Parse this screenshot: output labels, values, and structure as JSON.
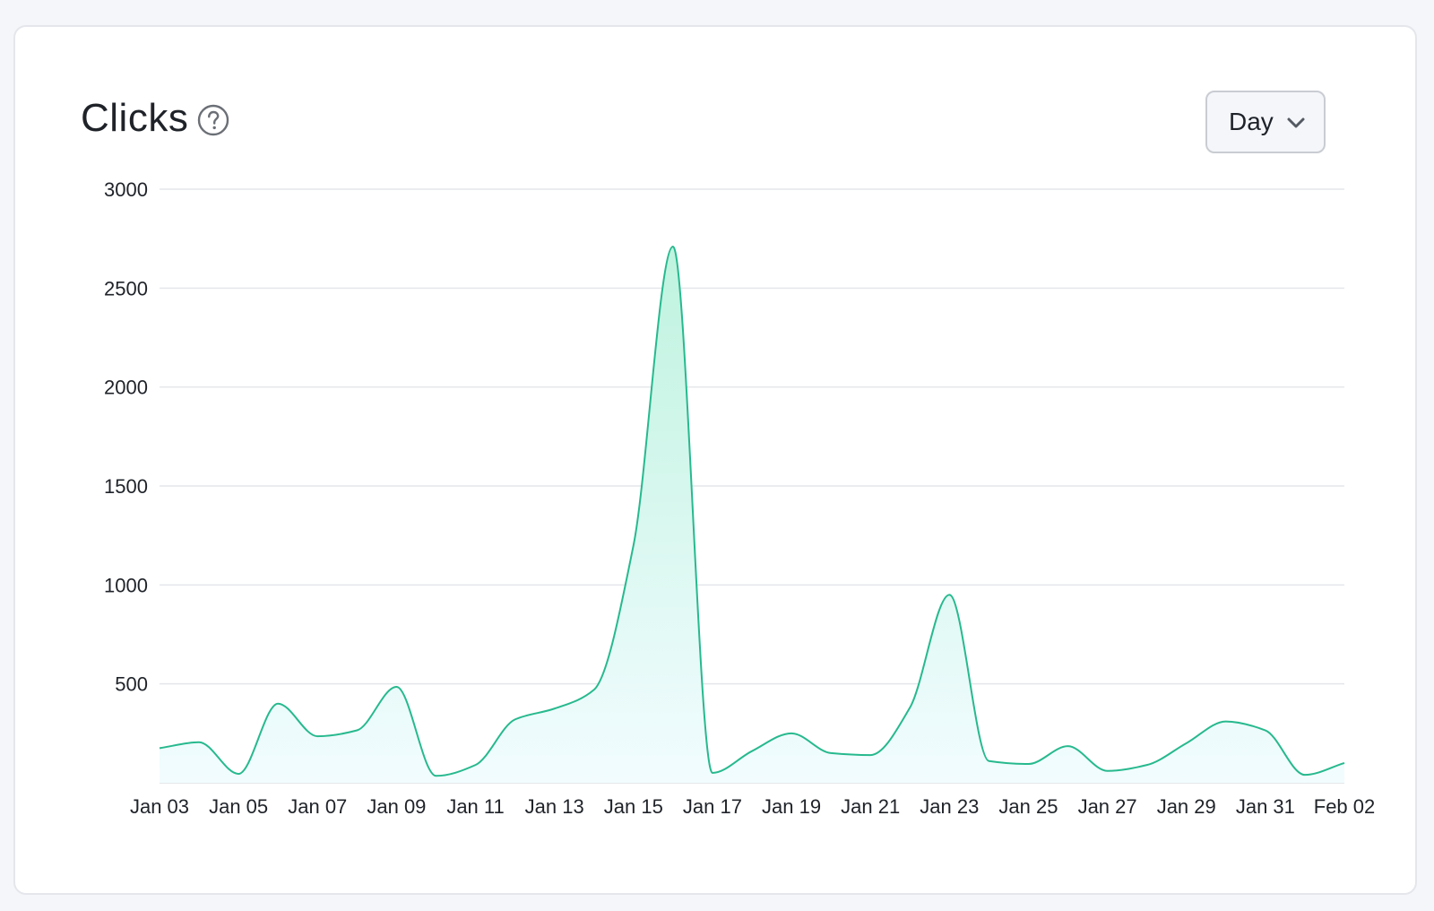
{
  "header": {
    "title": "Clicks",
    "help_icon": "question-circle-icon"
  },
  "controls": {
    "granularity_label": "Day",
    "granularity_icon": "chevron-down-icon"
  },
  "colors": {
    "line": "#27b98e",
    "fill_top": "#bff3df",
    "fill_bottom": "#f2fcff",
    "grid": "#e4e6ea",
    "axis_text": "#1f2329"
  },
  "chart_data": {
    "type": "area",
    "title": "Clicks",
    "xlabel": "",
    "ylabel": "",
    "ylim": [
      0,
      3000
    ],
    "yticks": [
      500,
      1000,
      1500,
      2000,
      2500,
      3000
    ],
    "grid": true,
    "x": [
      "Jan 03",
      "Jan 04",
      "Jan 05",
      "Jan 06",
      "Jan 07",
      "Jan 08",
      "Jan 09",
      "Jan 10",
      "Jan 11",
      "Jan 12",
      "Jan 13",
      "Jan 14",
      "Jan 15",
      "Jan 16",
      "Jan 17",
      "Jan 18",
      "Jan 19",
      "Jan 20",
      "Jan 21",
      "Jan 22",
      "Jan 23",
      "Jan 24",
      "Jan 25",
      "Jan 26",
      "Jan 27",
      "Jan 28",
      "Jan 29",
      "Jan 30",
      "Jan 31",
      "Feb 01",
      "Feb 02"
    ],
    "xtick_labels": [
      "Jan 03",
      "Jan 05",
      "Jan 07",
      "Jan 09",
      "Jan 11",
      "Jan 13",
      "Jan 15",
      "Jan 17",
      "Jan 19",
      "Jan 21",
      "Jan 23",
      "Jan 25",
      "Jan 27",
      "Jan 29",
      "Jan 31",
      "Feb 02"
    ],
    "series": [
      {
        "values": [
          175,
          205,
          45,
          400,
          235,
          265,
          485,
          35,
          90,
          320,
          375,
          470,
          1200,
          2710,
          50,
          160,
          250,
          150,
          140,
          380,
          950,
          110,
          95,
          185,
          60,
          90,
          200,
          310,
          265,
          40,
          100
        ]
      }
    ]
  }
}
